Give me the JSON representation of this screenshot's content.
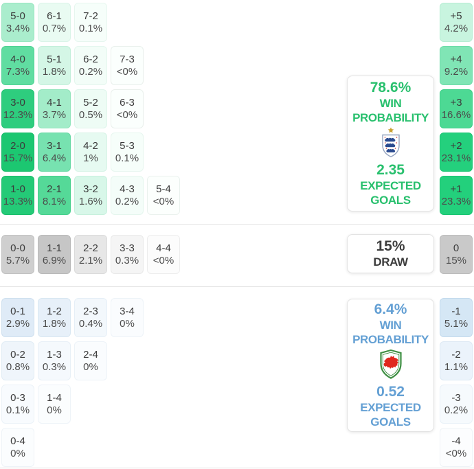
{
  "palette": {
    "win_accent": "#29c06e",
    "lose_accent": "#64a0d4",
    "neutral_text": "#3d3d3d",
    "cell_score_text": "#3c3c3c",
    "cell_pct_text": "#4c4c4c",
    "divider": "#e4e4e4",
    "england_navy": "#2a4a8f",
    "england_gold": "#c9a133",
    "wales_green": "#3e8f43",
    "wales_red": "#e0271e"
  },
  "icons": {
    "win_team_crest": "england-crest",
    "lose_team_crest": "wales-crest"
  },
  "chart_data": {
    "type": "heatmap",
    "win": {
      "summary": {
        "probability": "78.6%",
        "label_line1": "WIN",
        "label_line2": "PROBABILITY",
        "expected": "2.35",
        "expected_line1": "EXPECTED",
        "expected_line2": "GOALS"
      },
      "cells": [
        {
          "label": "5-0",
          "pct": "3.4%",
          "row": 0,
          "col": 0,
          "bg": "#aaedcd",
          "border": "#98e6c0"
        },
        {
          "label": "6-1",
          "pct": "0.7%",
          "row": 0,
          "col": 1,
          "bg": "#e9fbf2",
          "border": "#daf4e8"
        },
        {
          "label": "7-2",
          "pct": "0.1%",
          "row": 0,
          "col": 2,
          "bg": "#f6fefa",
          "border": "#e7f6ef"
        },
        {
          "label": "4-0",
          "pct": "7.3%",
          "row": 1,
          "col": 0,
          "bg": "#60dda1",
          "border": "#50d294"
        },
        {
          "label": "5-1",
          "pct": "1.8%",
          "row": 1,
          "col": 1,
          "bg": "#d4f6e6",
          "border": "#c3efda"
        },
        {
          "label": "6-2",
          "pct": "0.2%",
          "row": 1,
          "col": 2,
          "bg": "#f3fdf8",
          "border": "#e4f6ee"
        },
        {
          "label": "7-3",
          "pct": "<0%",
          "row": 1,
          "col": 3,
          "bg": "#fbfffd",
          "border": "#e9f0ec"
        },
        {
          "label": "3-0",
          "pct": "12.3%",
          "row": 2,
          "col": 0,
          "bg": "#2ecd7e",
          "border": "#23c172"
        },
        {
          "label": "4-1",
          "pct": "3.7%",
          "row": 2,
          "col": 1,
          "bg": "#a3ecc9",
          "border": "#91e4bb"
        },
        {
          "label": "5-2",
          "pct": "0.5%",
          "row": 2,
          "col": 2,
          "bg": "#eefcf5",
          "border": "#dff5eb"
        },
        {
          "label": "6-3",
          "pct": "<0%",
          "row": 2,
          "col": 3,
          "bg": "#fbfffd",
          "border": "#e9f0ec"
        },
        {
          "label": "2-0",
          "pct": "15.7%",
          "row": 3,
          "col": 0,
          "bg": "#1cc771",
          "border": "#12b965"
        },
        {
          "label": "3-1",
          "pct": "6.4%",
          "row": 3,
          "col": 1,
          "bg": "#77e2b0",
          "border": "#66d8a3"
        },
        {
          "label": "4-2",
          "pct": "1%",
          "row": 3,
          "col": 2,
          "bg": "#e6faf1",
          "border": "#d6f3e6"
        },
        {
          "label": "5-3",
          "pct": "0.1%",
          "row": 3,
          "col": 3,
          "bg": "#f6fefa",
          "border": "#e7f6ef"
        },
        {
          "label": "1-0",
          "pct": "13.3%",
          "row": 4,
          "col": 0,
          "bg": "#24ca77",
          "border": "#19bd6a"
        },
        {
          "label": "2-1",
          "pct": "8.1%",
          "row": 4,
          "col": 1,
          "bg": "#55d998",
          "border": "#45cf8b"
        },
        {
          "label": "3-2",
          "pct": "1.6%",
          "row": 4,
          "col": 2,
          "bg": "#d8f7e9",
          "border": "#c7f0dd"
        },
        {
          "label": "4-3",
          "pct": "0.2%",
          "row": 4,
          "col": 3,
          "bg": "#f4fdf9",
          "border": "#e5f6ee"
        },
        {
          "label": "5-4",
          "pct": "<0%",
          "row": 4,
          "col": 4,
          "bg": "#fcfffd",
          "border": "#eaf2ee"
        }
      ],
      "diff_cells": [
        {
          "label": "+5",
          "pct": "4.2%",
          "row": 0,
          "bg": "#c8f4df",
          "border": "#b6edd3"
        },
        {
          "label": "+4",
          "pct": "9.2%",
          "row": 1,
          "bg": "#80e5b5",
          "border": "#6edca9"
        },
        {
          "label": "+3",
          "pct": "16.6%",
          "row": 2,
          "bg": "#4dd994",
          "border": "#3ccf87"
        },
        {
          "label": "+2",
          "pct": "23.1%",
          "row": 3,
          "bg": "#24d07d",
          "border": "#19c472"
        },
        {
          "label": "+1",
          "pct": "23.3%",
          "row": 4,
          "bg": "#23d07c",
          "border": "#18c471"
        }
      ]
    },
    "draw": {
      "summary": {
        "probability": "15%",
        "label": "DRAW"
      },
      "cells": [
        {
          "label": "0-0",
          "pct": "5.7%",
          "row": 0,
          "col": 0,
          "bg": "#cfcfcf",
          "border": "#c1c1c1"
        },
        {
          "label": "1-1",
          "pct": "6.9%",
          "row": 0,
          "col": 1,
          "bg": "#c6c6c6",
          "border": "#b8b8b8"
        },
        {
          "label": "2-2",
          "pct": "2.1%",
          "row": 0,
          "col": 2,
          "bg": "#e7e7e7",
          "border": "#dadada"
        },
        {
          "label": "3-3",
          "pct": "0.3%",
          "row": 0,
          "col": 3,
          "bg": "#f5f5f5",
          "border": "#e9e9e9"
        },
        {
          "label": "4-4",
          "pct": "<0%",
          "row": 0,
          "col": 4,
          "bg": "#fcfcfc",
          "border": "#ededed"
        }
      ],
      "diff_cells": [
        {
          "label": "0",
          "pct": "15%",
          "row": 0,
          "bg": "#c9c9c9",
          "border": "#bbbbbb"
        }
      ]
    },
    "lose": {
      "summary": {
        "probability": "6.4%",
        "label_line1": "WIN",
        "label_line2": "PROBABILITY",
        "expected": "0.52",
        "expected_line1": "EXPECTED",
        "expected_line2": "GOALS"
      },
      "cells": [
        {
          "label": "0-1",
          "pct": "2.9%",
          "row": 0,
          "col": 0,
          "bg": "#dfebf7",
          "border": "#cfe0ef"
        },
        {
          "label": "1-2",
          "pct": "1.8%",
          "row": 0,
          "col": 1,
          "bg": "#e7f0f9",
          "border": "#d8e7f2"
        },
        {
          "label": "2-3",
          "pct": "0.4%",
          "row": 0,
          "col": 2,
          "bg": "#f3f8fc",
          "border": "#e6eff7"
        },
        {
          "label": "3-4",
          "pct": "0%",
          "row": 0,
          "col": 3,
          "bg": "#fafcfe",
          "border": "#edf3f8"
        },
        {
          "label": "0-2",
          "pct": "0.8%",
          "row": 1,
          "col": 0,
          "bg": "#eff5fb",
          "border": "#e1ecf5"
        },
        {
          "label": "1-3",
          "pct": "0.3%",
          "row": 1,
          "col": 1,
          "bg": "#f5f9fd",
          "border": "#e8f0f7"
        },
        {
          "label": "2-4",
          "pct": "0%",
          "row": 1,
          "col": 2,
          "bg": "#fafcfe",
          "border": "#edf3f8"
        },
        {
          "label": "0-3",
          "pct": "0.1%",
          "row": 2,
          "col": 0,
          "bg": "#f8fbfe",
          "border": "#ebf2f8"
        },
        {
          "label": "1-4",
          "pct": "0%",
          "row": 2,
          "col": 1,
          "bg": "#fbfdfe",
          "border": "#eef3f8"
        },
        {
          "label": "0-4",
          "pct": "0%",
          "row": 3,
          "col": 0,
          "bg": "#fbfdfe",
          "border": "#eef3f8"
        }
      ],
      "diff_cells": [
        {
          "label": "-1",
          "pct": "5.1%",
          "row": 0,
          "bg": "#d5e7f5",
          "border": "#c3daed"
        },
        {
          "label": "-2",
          "pct": "1.1%",
          "row": 1,
          "bg": "#ebf3fb",
          "border": "#dde9f4"
        },
        {
          "label": "-3",
          "pct": "0.2%",
          "row": 2,
          "bg": "#f6fafd",
          "border": "#e9f1f8"
        },
        {
          "label": "-4",
          "pct": "<0%",
          "row": 3,
          "bg": "#fcfdfe",
          "border": "#eff3f7"
        }
      ]
    }
  }
}
